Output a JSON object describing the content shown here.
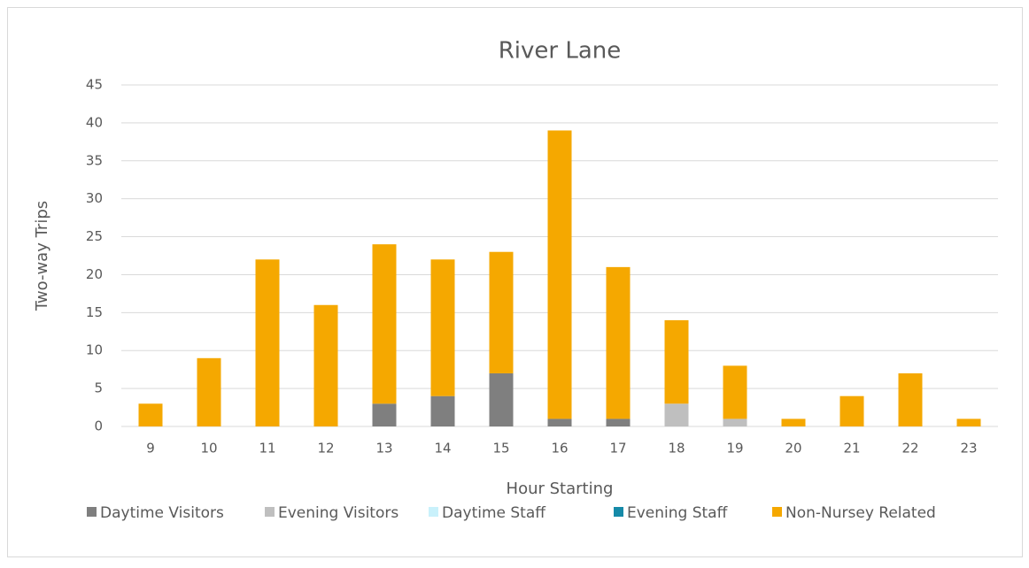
{
  "chart_data": {
    "type": "stacked_bar",
    "title": "River Lane",
    "x_label": "Hour Starting",
    "y_label": "Two-way Trips",
    "categories": [
      "9",
      "10",
      "11",
      "12",
      "13",
      "14",
      "15",
      "16",
      "17",
      "18",
      "19",
      "20",
      "21",
      "22",
      "23"
    ],
    "series": [
      {
        "name": "Daytime Visitors",
        "color": "#7f7f7f",
        "values": [
          0,
          0,
          0,
          0,
          3,
          4,
          7,
          1,
          1,
          0,
          0,
          0,
          0,
          0,
          0
        ]
      },
      {
        "name": "Evening Visitors",
        "color": "#bfbfbf",
        "values": [
          0,
          0,
          0,
          0,
          0,
          0,
          0,
          0,
          0,
          3,
          1,
          0,
          0,
          0,
          0
        ]
      },
      {
        "name": "Daytime Staff",
        "color": "#c9f1fb",
        "values": [
          0,
          0,
          0,
          0,
          0,
          0,
          0,
          0,
          0,
          0,
          0,
          0,
          0,
          0,
          0
        ]
      },
      {
        "name": "Evening Staff",
        "color": "#168aa8",
        "values": [
          0,
          0,
          0,
          0,
          0,
          0,
          0,
          0,
          0,
          0,
          0,
          0,
          0,
          0,
          0
        ]
      },
      {
        "name": "Non-Nursey Related",
        "color": "#f5a800",
        "values": [
          3,
          9,
          22,
          16,
          21,
          18,
          16,
          38,
          20,
          11,
          7,
          1,
          4,
          7,
          1
        ]
      }
    ],
    "ylim": [
      0,
      45
    ],
    "yticks": [
      0,
      5,
      10,
      15,
      20,
      25,
      30,
      35,
      40,
      45
    ],
    "grid": true,
    "legend": "bottom"
  }
}
